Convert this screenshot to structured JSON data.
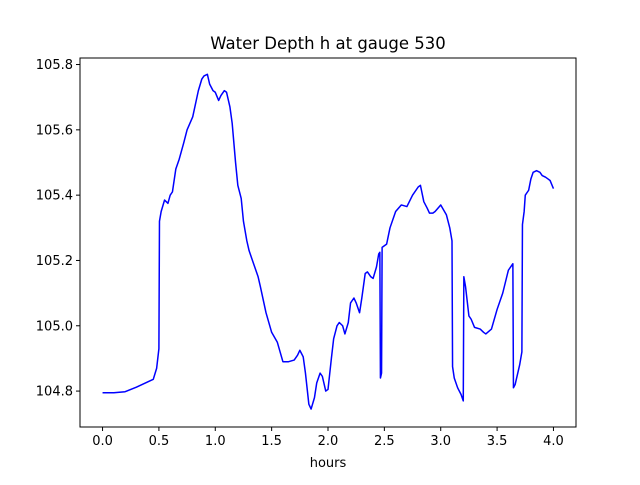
{
  "chart_data": {
    "type": "line",
    "title": "Water Depth h at gauge 530",
    "xlabel": "hours",
    "ylabel": "",
    "xlim": [
      -0.2,
      4.2
    ],
    "ylim": [
      104.69,
      105.82
    ],
    "xticks": [
      0.0,
      0.5,
      1.0,
      1.5,
      2.0,
      2.5,
      3.0,
      3.5,
      4.0
    ],
    "xtick_labels": [
      "0.0",
      "0.5",
      "1.0",
      "1.5",
      "2.0",
      "2.5",
      "3.0",
      "3.5",
      "4.0"
    ],
    "yticks": [
      104.8,
      105.0,
      105.2,
      105.4,
      105.6,
      105.8
    ],
    "ytick_labels": [
      "104.8",
      "105.0",
      "105.2",
      "105.4",
      "105.6",
      "105.8"
    ],
    "grid": false,
    "legend": "none",
    "colors": {
      "line": "#0000ff",
      "axes": "#000000",
      "background": "#ffffff"
    },
    "series": [
      {
        "x": [
          0.0,
          0.1,
          0.2,
          0.3,
          0.4,
          0.45,
          0.48,
          0.5,
          0.505,
          0.52,
          0.55,
          0.58,
          0.6,
          0.62,
          0.65,
          0.68,
          0.7,
          0.72,
          0.75,
          0.8,
          0.85,
          0.88,
          0.9,
          0.93,
          0.95,
          0.98,
          1.0,
          1.03,
          1.05,
          1.08,
          1.1,
          1.13,
          1.15,
          1.18,
          1.2,
          1.23,
          1.25,
          1.28,
          1.3,
          1.33,
          1.35,
          1.38,
          1.4,
          1.45,
          1.5,
          1.55,
          1.6,
          1.65,
          1.7,
          1.73,
          1.75,
          1.78,
          1.8,
          1.83,
          1.85,
          1.88,
          1.9,
          1.93,
          1.95,
          1.98,
          2.0,
          2.03,
          2.05,
          2.08,
          2.1,
          2.13,
          2.15,
          2.18,
          2.2,
          2.23,
          2.25,
          2.28,
          2.3,
          2.33,
          2.35,
          2.38,
          2.4,
          2.43,
          2.45,
          2.46,
          2.465,
          2.475,
          2.48,
          2.5,
          2.52,
          2.55,
          2.6,
          2.65,
          2.7,
          2.75,
          2.8,
          2.82,
          2.85,
          2.88,
          2.9,
          2.93,
          2.95,
          3.0,
          3.05,
          3.08,
          3.1,
          3.105,
          3.12,
          3.15,
          3.18,
          3.2,
          3.205,
          3.22,
          3.25,
          3.27,
          3.3,
          3.35,
          3.38,
          3.4,
          3.45,
          3.5,
          3.55,
          3.6,
          3.63,
          3.64,
          3.645,
          3.66,
          3.7,
          3.72,
          3.725,
          3.74,
          3.75,
          3.77,
          3.78,
          3.8,
          3.82,
          3.85,
          3.88,
          3.9,
          3.93,
          3.95,
          3.97,
          4.0
        ],
        "y": [
          104.795,
          104.795,
          104.798,
          104.812,
          104.828,
          104.836,
          104.87,
          104.93,
          105.32,
          105.35,
          105.385,
          105.375,
          105.4,
          105.41,
          105.48,
          105.51,
          105.535,
          105.56,
          105.6,
          105.64,
          105.72,
          105.755,
          105.765,
          105.77,
          105.74,
          105.72,
          105.715,
          105.69,
          105.705,
          105.72,
          105.715,
          105.67,
          105.62,
          105.5,
          105.43,
          105.39,
          105.32,
          105.26,
          105.23,
          105.2,
          105.18,
          105.15,
          105.12,
          105.04,
          104.98,
          104.95,
          104.89,
          104.89,
          104.895,
          104.91,
          104.925,
          104.905,
          104.855,
          104.76,
          104.745,
          104.78,
          104.825,
          104.855,
          104.845,
          104.8,
          104.805,
          104.9,
          104.96,
          105.0,
          105.01,
          105.0,
          104.975,
          105.01,
          105.07,
          105.085,
          105.07,
          105.04,
          105.085,
          105.16,
          105.165,
          105.15,
          105.145,
          105.18,
          105.22,
          105.225,
          104.84,
          104.855,
          105.24,
          105.245,
          105.25,
          105.3,
          105.35,
          105.37,
          105.365,
          105.4,
          105.425,
          105.43,
          105.38,
          105.36,
          105.345,
          105.345,
          105.35,
          105.37,
          105.34,
          105.3,
          105.26,
          104.875,
          104.84,
          104.81,
          104.79,
          104.77,
          105.15,
          105.12,
          105.03,
          105.02,
          104.995,
          104.99,
          104.98,
          104.975,
          104.99,
          105.05,
          105.1,
          105.17,
          105.185,
          105.19,
          104.81,
          104.82,
          104.88,
          104.92,
          105.31,
          105.35,
          105.4,
          105.41,
          105.415,
          105.45,
          105.47,
          105.475,
          105.47,
          105.46,
          105.455,
          105.45,
          105.445,
          105.42
        ]
      }
    ]
  }
}
